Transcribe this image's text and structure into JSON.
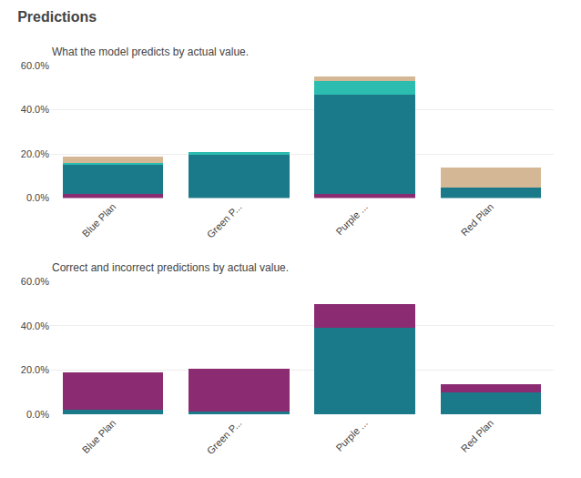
{
  "chart_data": [
    {
      "type": "bar",
      "title": "Predictions",
      "subtitle": "What the model predicts by actual value.",
      "categories": [
        "Blue Plan",
        "Green P...",
        "Purple ...",
        "Red Plan"
      ],
      "stacked": true,
      "grid": true,
      "series": [
        {
          "color": "#8B2B72",
          "values": [
            0.02,
            0.0,
            0.02,
            0.0
          ]
        },
        {
          "color": "#1B7A8A",
          "values": [
            0.13,
            0.195,
            0.45,
            0.048
          ]
        },
        {
          "color": "#2DBCB0",
          "values": [
            0.01,
            0.013,
            0.06,
            0.0
          ]
        },
        {
          "color": "#D4B896",
          "values": [
            0.028,
            0.0,
            0.02,
            0.09
          ]
        }
      ],
      "ylim": [
        0.0,
        0.6
      ],
      "yticks": [
        {
          "value": 0.0,
          "label": "0.0%"
        },
        {
          "value": 0.2,
          "label": "20.0%"
        },
        {
          "value": 0.4,
          "label": "40.0%"
        },
        {
          "value": 0.6,
          "label": "60.0%"
        }
      ]
    },
    {
      "type": "bar",
      "subtitle": "Correct and incorrect predictions by actual value.",
      "categories": [
        "Blue Plan",
        "Green P...",
        "Purple ...",
        "Red Plan"
      ],
      "stacked": true,
      "grid": true,
      "series": [
        {
          "color": "#1B7A8A",
          "values": [
            0.02,
            0.013,
            0.39,
            0.098
          ]
        },
        {
          "color": "#8B2B72",
          "values": [
            0.168,
            0.192,
            0.108,
            0.04
          ]
        }
      ],
      "ylim": [
        0.0,
        0.6
      ],
      "yticks": [
        {
          "value": 0.0,
          "label": "0.0%"
        },
        {
          "value": 0.2,
          "label": "20.0%"
        },
        {
          "value": 0.4,
          "label": "40.0%"
        },
        {
          "value": 0.6,
          "label": "60.0%"
        }
      ]
    }
  ]
}
